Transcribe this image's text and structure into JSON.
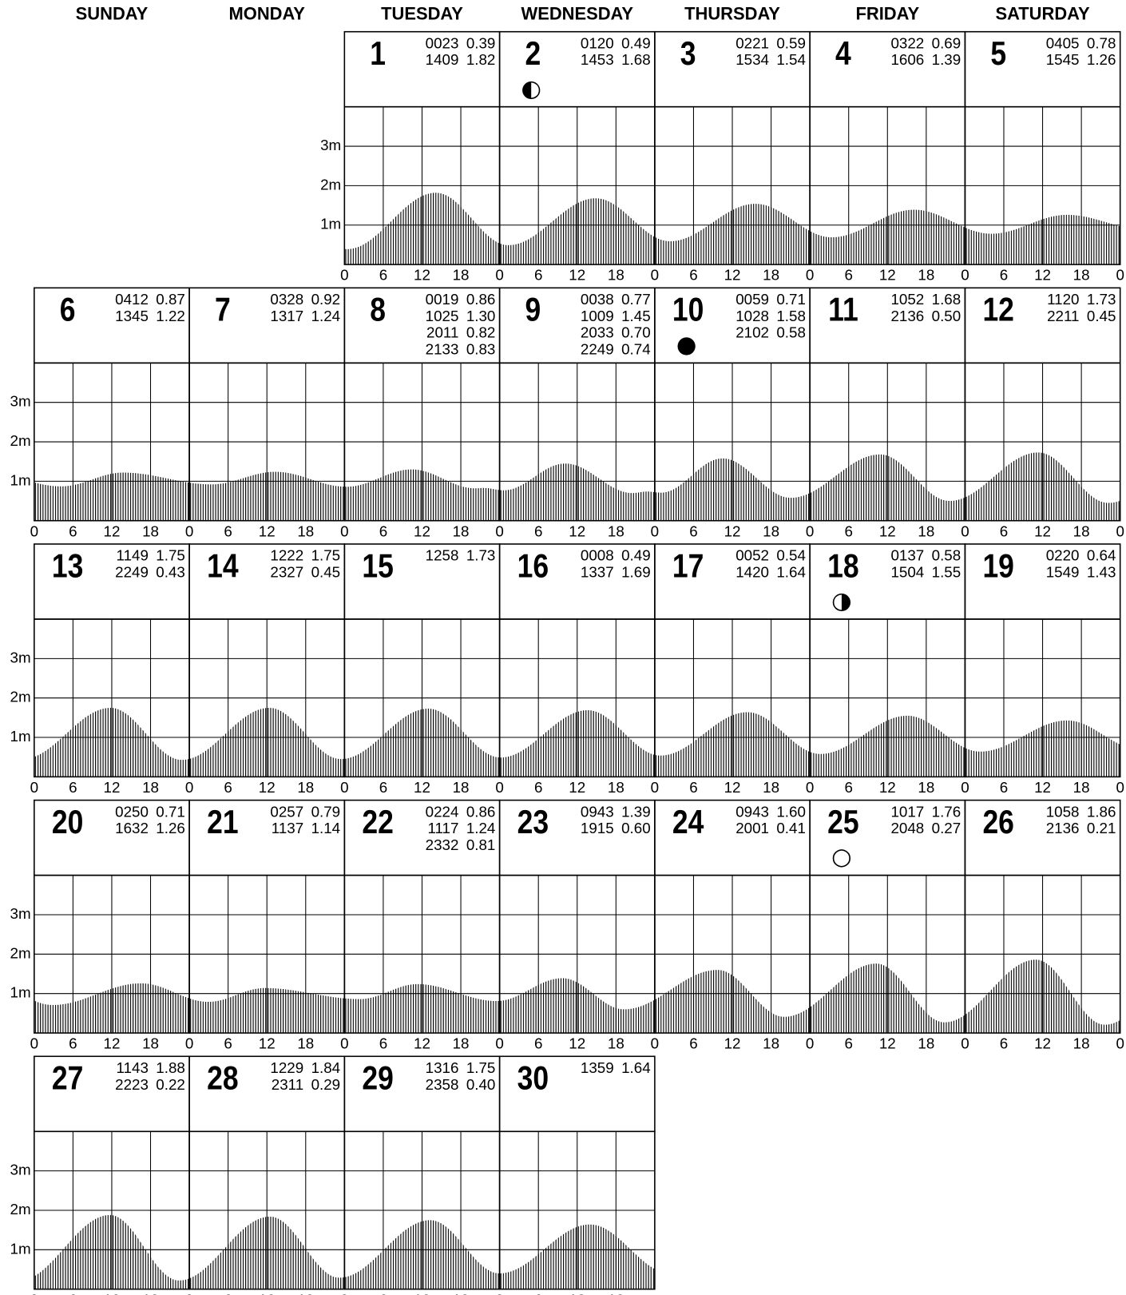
{
  "weekdays": [
    "SUNDAY",
    "MONDAY",
    "TUESDAY",
    "WEDNESDAY",
    "THURSDAY",
    "FRIDAY",
    "SATURDAY"
  ],
  "ylim": [
    0,
    4
  ],
  "height_ticks": [
    {
      "value": 1,
      "label": "1m"
    },
    {
      "value": 2,
      "label": "2m"
    },
    {
      "value": 3,
      "label": "3m"
    }
  ],
  "hour_ticks": [
    0,
    6,
    12,
    18,
    {
      "value": 24,
      "label": "0"
    }
  ],
  "days": [
    {
      "day": 1,
      "tides": [
        {
          "time": "0023",
          "height": "0.39"
        },
        {
          "time": "1409",
          "height": "1.82"
        }
      ]
    },
    {
      "day": 2,
      "tides": [
        {
          "time": "0120",
          "height": "0.49"
        },
        {
          "time": "1453",
          "height": "1.68"
        }
      ],
      "moon": "◐"
    },
    {
      "day": 3,
      "tides": [
        {
          "time": "0221",
          "height": "0.59"
        },
        {
          "time": "1534",
          "height": "1.54"
        }
      ]
    },
    {
      "day": 4,
      "tides": [
        {
          "time": "0322",
          "height": "0.69"
        },
        {
          "time": "1606",
          "height": "1.39"
        }
      ]
    },
    {
      "day": 5,
      "tides": [
        {
          "time": "0405",
          "height": "0.78"
        },
        {
          "time": "1545",
          "height": "1.26"
        }
      ]
    },
    {
      "day": 6,
      "tides": [
        {
          "time": "0412",
          "height": "0.87"
        },
        {
          "time": "1345",
          "height": "1.22"
        }
      ]
    },
    {
      "day": 7,
      "tides": [
        {
          "time": "0328",
          "height": "0.92"
        },
        {
          "time": "1317",
          "height": "1.24"
        }
      ]
    },
    {
      "day": 8,
      "tides": [
        {
          "time": "0019",
          "height": "0.86"
        },
        {
          "time": "1025",
          "height": "1.30"
        },
        {
          "time": "2011",
          "height": "0.82"
        },
        {
          "time": "2133",
          "height": "0.83"
        }
      ]
    },
    {
      "day": 9,
      "tides": [
        {
          "time": "0038",
          "height": "0.77"
        },
        {
          "time": "1009",
          "height": "1.45"
        },
        {
          "time": "2033",
          "height": "0.70"
        },
        {
          "time": "2249",
          "height": "0.74"
        }
      ]
    },
    {
      "day": 10,
      "tides": [
        {
          "time": "0059",
          "height": "0.71"
        },
        {
          "time": "1028",
          "height": "1.58"
        },
        {
          "time": "2102",
          "height": "0.58"
        }
      ],
      "moon": "●"
    },
    {
      "day": 11,
      "tides": [
        {
          "time": "1052",
          "height": "1.68"
        },
        {
          "time": "2136",
          "height": "0.50"
        }
      ]
    },
    {
      "day": 12,
      "tides": [
        {
          "time": "1120",
          "height": "1.73"
        },
        {
          "time": "2211",
          "height": "0.45"
        }
      ]
    },
    {
      "day": 13,
      "tides": [
        {
          "time": "1149",
          "height": "1.75"
        },
        {
          "time": "2249",
          "height": "0.43"
        }
      ]
    },
    {
      "day": 14,
      "tides": [
        {
          "time": "1222",
          "height": "1.75"
        },
        {
          "time": "2327",
          "height": "0.45"
        }
      ]
    },
    {
      "day": 15,
      "tides": [
        {
          "time": "1258",
          "height": "1.73"
        }
      ]
    },
    {
      "day": 16,
      "tides": [
        {
          "time": "0008",
          "height": "0.49"
        },
        {
          "time": "1337",
          "height": "1.69"
        }
      ]
    },
    {
      "day": 17,
      "tides": [
        {
          "time": "0052",
          "height": "0.54"
        },
        {
          "time": "1420",
          "height": "1.64"
        }
      ]
    },
    {
      "day": 18,
      "tides": [
        {
          "time": "0137",
          "height": "0.58"
        },
        {
          "time": "1504",
          "height": "1.55"
        }
      ],
      "moon": "◑"
    },
    {
      "day": 19,
      "tides": [
        {
          "time": "0220",
          "height": "0.64"
        },
        {
          "time": "1549",
          "height": "1.43"
        }
      ]
    },
    {
      "day": 20,
      "tides": [
        {
          "time": "0250",
          "height": "0.71"
        },
        {
          "time": "1632",
          "height": "1.26"
        }
      ]
    },
    {
      "day": 21,
      "tides": [
        {
          "time": "0257",
          "height": "0.79"
        },
        {
          "time": "1137",
          "height": "1.14"
        }
      ]
    },
    {
      "day": 22,
      "tides": [
        {
          "time": "0224",
          "height": "0.86"
        },
        {
          "time": "1117",
          "height": "1.24"
        },
        {
          "time": "2332",
          "height": "0.81"
        }
      ]
    },
    {
      "day": 23,
      "tides": [
        {
          "time": "0943",
          "height": "1.39"
        },
        {
          "time": "1915",
          "height": "0.60"
        }
      ]
    },
    {
      "day": 24,
      "tides": [
        {
          "time": "0943",
          "height": "1.60"
        },
        {
          "time": "2001",
          "height": "0.41"
        }
      ]
    },
    {
      "day": 25,
      "tides": [
        {
          "time": "1017",
          "height": "1.76"
        },
        {
          "time": "2048",
          "height": "0.27"
        }
      ],
      "moon": "○"
    },
    {
      "day": 26,
      "tides": [
        {
          "time": "1058",
          "height": "1.86"
        },
        {
          "time": "2136",
          "height": "0.21"
        }
      ]
    },
    {
      "day": 27,
      "tides": [
        {
          "time": "1143",
          "height": "1.88"
        },
        {
          "time": "2223",
          "height": "0.22"
        }
      ]
    },
    {
      "day": 28,
      "tides": [
        {
          "time": "1229",
          "height": "1.84"
        },
        {
          "time": "2311",
          "height": "0.29"
        }
      ]
    },
    {
      "day": 29,
      "tides": [
        {
          "time": "1316",
          "height": "1.75"
        },
        {
          "time": "2358",
          "height": "0.40"
        }
      ]
    },
    {
      "day": 30,
      "tides": [
        {
          "time": "1359",
          "height": "1.64"
        }
      ]
    }
  ]
}
